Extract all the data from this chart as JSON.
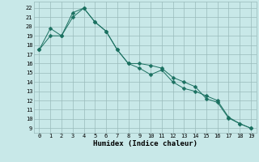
{
  "line1_x": [
    0,
    1,
    2,
    3,
    4,
    5,
    6,
    7,
    8,
    9,
    10,
    11,
    12,
    13,
    14,
    15,
    16,
    17,
    18,
    19
  ],
  "line1_y": [
    17.5,
    19.0,
    19.0,
    21.0,
    22.0,
    20.5,
    19.5,
    17.5,
    16.0,
    15.5,
    14.8,
    15.3,
    14.0,
    13.3,
    13.0,
    12.5,
    12.0,
    10.2,
    9.5,
    9.0
  ],
  "line2_x": [
    0,
    1,
    2,
    3,
    4,
    5,
    6,
    7,
    8,
    9,
    10,
    11,
    12,
    13,
    14,
    15,
    16,
    17,
    18,
    19
  ],
  "line2_y": [
    17.5,
    19.8,
    19.0,
    21.5,
    22.0,
    20.5,
    19.5,
    17.5,
    16.0,
    16.0,
    15.8,
    15.5,
    14.5,
    14.0,
    13.5,
    12.2,
    11.8,
    10.1,
    9.5,
    9.0
  ],
  "line_color": "#1a7060",
  "bg_color": "#c8e8e8",
  "grid_color": "#99bbbb",
  "xlabel": "Humidex (Indice chaleur)",
  "xlabel_fontsize": 6.5,
  "xlim": [
    -0.5,
    19.5
  ],
  "ylim": [
    8.5,
    22.7
  ],
  "yticks": [
    9,
    10,
    11,
    12,
    13,
    14,
    15,
    16,
    17,
    18,
    19,
    20,
    21,
    22
  ],
  "xticks": [
    0,
    1,
    2,
    3,
    4,
    5,
    6,
    7,
    8,
    9,
    10,
    11,
    12,
    13,
    14,
    15,
    16,
    17,
    18,
    19
  ],
  "tick_fontsize": 5.0,
  "markersize": 2.5
}
